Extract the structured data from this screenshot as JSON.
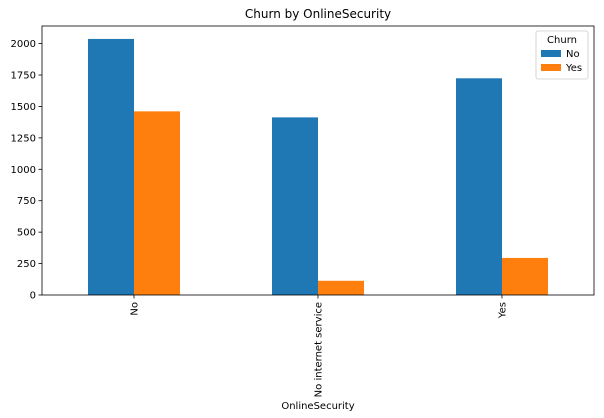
{
  "chart_data": {
    "type": "bar",
    "title": "Churn by OnlineSecurity",
    "xlabel": "OnlineSecurity",
    "ylabel": "",
    "categories": [
      "No",
      "No internet service",
      "Yes"
    ],
    "series": [
      {
        "name": "No",
        "color": "#1f77b4",
        "values": [
          2037,
          1413,
          1724
        ]
      },
      {
        "name": "Yes",
        "color": "#ff7f0e",
        "values": [
          1461,
          113,
          295
        ]
      }
    ],
    "ylim": [
      0,
      2140
    ],
    "yticks": [
      0,
      250,
      500,
      750,
      1000,
      1250,
      1500,
      1750,
      2000
    ],
    "legend": {
      "title": "Churn",
      "position": "top-right"
    },
    "grid": false
  }
}
